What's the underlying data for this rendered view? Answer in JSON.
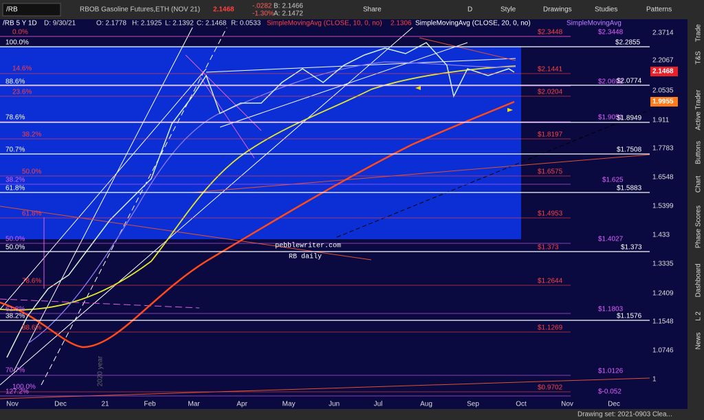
{
  "toolbar": {
    "symbol": "/RB",
    "title": "RBOB Gasoline Futures,ETH (NOV 21)",
    "price": "2.1468",
    "change": "-.0282",
    "change_pct": "-1.30%",
    "bid": "B: 2.1466",
    "ask": "A: 2.1472",
    "buttons": [
      "Share",
      "D",
      "Style",
      "Drawings",
      "Studies",
      "Patterns"
    ]
  },
  "chart_header": {
    "symbol": "/RB 5 Y 1D",
    "date": "D: 9/30/21",
    "open": "O: 2.1778",
    "high": "H: 2.1925",
    "low": "L: 2.1392",
    "close": "C: 2.1468",
    "range": "R: 0.0533",
    "study1": "SimpleMovingAvg (CLOSE, 10, 0, no)",
    "study1_value": "2.1306",
    "study2": "SimpleMovingAvg (CLOSE, 20, 0, no)",
    "study3": "SimpleMovingAvg"
  },
  "price_axis": [
    "2.3714",
    "2.2067",
    "2.0535",
    "1.911",
    "1.7783",
    "1.6548",
    "1.5399",
    "1.433",
    "1.3335",
    "1.2409",
    "1.1548",
    "1.0746",
    "1"
  ],
  "price_markers": [
    "2.1468",
    "1.9955"
  ],
  "time_axis": [
    "Nov",
    "Dec",
    "21",
    "Feb",
    "Mar",
    "Apr",
    "May",
    "Jun",
    "Jul",
    "Aug",
    "Sep",
    "Oct",
    "Nov",
    "Dec"
  ],
  "fib_labels": [
    "0.0%",
    "100.0%",
    "14.6%",
    "88.6%",
    "23.6%",
    "78.6%",
    "38.2%",
    "70.7%",
    "50.0%",
    "38.2%",
    "61.8%",
    "61.8%",
    "50.0%",
    "50.0%",
    "78.6%",
    "61.8%",
    "38.2%",
    "88.6%",
    "70.7%",
    "100.0%",
    "127.2%"
  ],
  "level_labels": [
    "$2.3448",
    "$2.3448",
    "$2.2855",
    "$2.1441",
    "$2.0692",
    "$2.0774",
    "$2.0204",
    "$1.9051",
    "$1.8949",
    "$1.8197",
    "$1.7508",
    "$1.6575",
    "$1.625",
    "$1.5883",
    "$1.4953",
    "$1.4027",
    "$1.373",
    "$1.373",
    "$1.2644",
    "$1.1803",
    "$1.1576",
    "$1.1269",
    "$1.0126",
    "$0.9702",
    "$-0.052"
  ],
  "watermark": [
    "pebblewriter.com",
    "RB daily"
  ],
  "vertical_note": "2020 year",
  "side_tabs": [
    "Trade",
    "T&S",
    "Active Trader",
    "Buttons",
    "Chart",
    "Phase Scores",
    "Dashboard",
    "L 2",
    "News"
  ],
  "status": "Drawing set: 2021-0903 Clea..."
}
